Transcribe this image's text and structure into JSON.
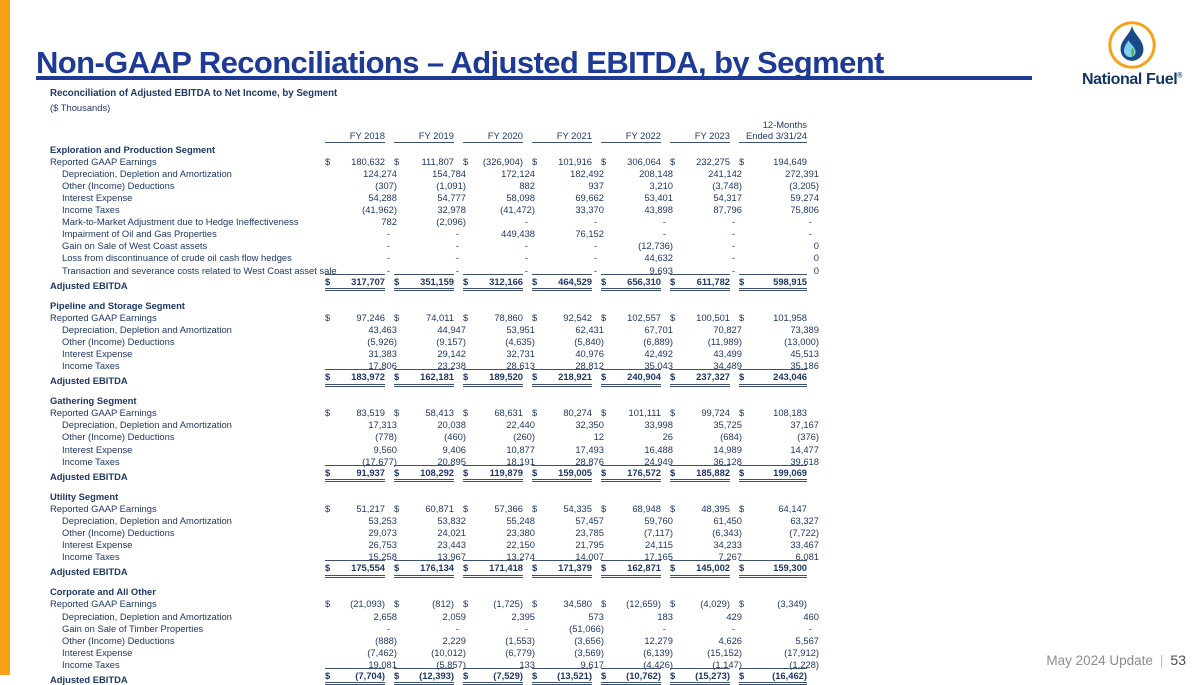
{
  "slide": {
    "title": "Non-GAAP Reconciliations – Adjusted EBITDA, by Segment",
    "logo": {
      "wordmark": "National Fuel",
      "registered_mark": "®",
      "icon": "flame-droplet-icon"
    },
    "footer": {
      "update_text": "May 2024 Update",
      "separator": "|",
      "page_number": "53"
    }
  },
  "colors": {
    "accent_orange": "#F7A11A",
    "title_blue": "#1e3a94",
    "navy_text": "#1F3864",
    "rule_navy": "#3d5070",
    "footer_gray": "#8c8c8c"
  },
  "table": {
    "title": "Reconciliation of Adjusted EBITDA to Net Income, by Segment",
    "subtitle": "($ Thousands)",
    "col_headers": [
      "FY 2018",
      "FY 2019",
      "FY 2020",
      "FY 2021",
      "FY 2022",
      "FY 2023"
    ],
    "last_col_header_line1": "12-Months",
    "last_col_header_line2": "Ended 3/31/24",
    "segments": [
      {
        "name": "Exploration and Production Segment",
        "rows": [
          {
            "label": "Reported GAAP Earnings",
            "indent": false,
            "dollar": true,
            "total": false,
            "values": [
              "180,632",
              "111,807",
              "(326,904)",
              "101,916",
              "306,064",
              "232,275",
              "194,649"
            ]
          },
          {
            "label": "Depreciation, Depletion and Amortization",
            "indent": true,
            "dollar": false,
            "total": false,
            "values": [
              "124,274",
              "154,784",
              "172,124",
              "182,492",
              "208,148",
              "241,142",
              "272,391"
            ]
          },
          {
            "label": "Other (Income) Deductions",
            "indent": true,
            "dollar": false,
            "total": false,
            "values": [
              "(307)",
              "(1,091)",
              "882",
              "937",
              "3,210",
              "(3,748)",
              "(3,205)"
            ]
          },
          {
            "label": "Interest Expense",
            "indent": true,
            "dollar": false,
            "total": false,
            "values": [
              "54,288",
              "54,777",
              "58,098",
              "69,662",
              "53,401",
              "54,317",
              "59,274"
            ]
          },
          {
            "label": "Income Taxes",
            "indent": true,
            "dollar": false,
            "total": false,
            "values": [
              "(41,962)",
              "32,978",
              "(41,472)",
              "33,370",
              "43,898",
              "87,796",
              "75,806"
            ]
          },
          {
            "label": "Mark-to-Market Adjustment due to Hedge Ineffectiveness",
            "indent": true,
            "dollar": false,
            "total": false,
            "values": [
              "782",
              "(2,096)",
              "-",
              "-",
              "-",
              "-",
              "-"
            ]
          },
          {
            "label": "Impairment of Oil and Gas Properties",
            "indent": true,
            "dollar": false,
            "total": false,
            "values": [
              "-",
              "-",
              "449,438",
              "76,152",
              "-",
              "-",
              "-"
            ]
          },
          {
            "label": "Gain on Sale of West Coast assets",
            "indent": true,
            "dollar": false,
            "total": false,
            "values": [
              "-",
              "-",
              "-",
              "-",
              "(12,736)",
              "-",
              "0"
            ]
          },
          {
            "label": "Loss from discontinuance of crude oil cash flow hedges",
            "indent": true,
            "dollar": false,
            "total": false,
            "values": [
              "-",
              "-",
              "-",
              "-",
              "44,632",
              "-",
              "0"
            ]
          },
          {
            "label": "Transaction and severance costs related to West Coast asset sale",
            "indent": true,
            "dollar": false,
            "total": false,
            "values": [
              "-",
              "-",
              "-",
              "-",
              "9,693",
              "-",
              "0"
            ]
          },
          {
            "label": "Adjusted EBITDA",
            "indent": false,
            "dollar": true,
            "total": true,
            "values": [
              "317,707",
              "351,159",
              "312,166",
              "464,529",
              "656,310",
              "611,782",
              "598,915"
            ]
          }
        ]
      },
      {
        "name": "Pipeline and Storage Segment",
        "rows": [
          {
            "label": "Reported GAAP Earnings",
            "indent": false,
            "dollar": true,
            "total": false,
            "values": [
              "97,246",
              "74,011",
              "78,860",
              "92,542",
              "102,557",
              "100,501",
              "101,958"
            ]
          },
          {
            "label": "Depreciation, Depletion and Amortization",
            "indent": true,
            "dollar": false,
            "total": false,
            "values": [
              "43,463",
              "44,947",
              "53,951",
              "62,431",
              "67,701",
              "70,827",
              "73,389"
            ]
          },
          {
            "label": "Other (Income) Deductions",
            "indent": true,
            "dollar": false,
            "total": false,
            "values": [
              "(5,926)",
              "(9,157)",
              "(4,635)",
              "(5,840)",
              "(6,889)",
              "(11,989)",
              "(13,000)"
            ]
          },
          {
            "label": "Interest Expense",
            "indent": true,
            "dollar": false,
            "total": false,
            "values": [
              "31,383",
              "29,142",
              "32,731",
              "40,976",
              "42,492",
              "43,499",
              "45,513"
            ]
          },
          {
            "label": "Income Taxes",
            "indent": true,
            "dollar": false,
            "total": false,
            "values": [
              "17,806",
              "23,238",
              "28,613",
              "28,812",
              "35,043",
              "34,489",
              "35,186"
            ]
          },
          {
            "label": "Adjusted EBITDA",
            "indent": false,
            "dollar": true,
            "total": true,
            "values": [
              "183,972",
              "162,181",
              "189,520",
              "218,921",
              "240,904",
              "237,327",
              "243,046"
            ]
          }
        ]
      },
      {
        "name": "Gathering Segment",
        "rows": [
          {
            "label": "Reported GAAP Earnings",
            "indent": false,
            "dollar": true,
            "total": false,
            "values": [
              "83,519",
              "58,413",
              "68,631",
              "80,274",
              "101,111",
              "99,724",
              "108,183"
            ]
          },
          {
            "label": "Depreciation, Depletion and Amortization",
            "indent": true,
            "dollar": false,
            "total": false,
            "values": [
              "17,313",
              "20,038",
              "22,440",
              "32,350",
              "33,998",
              "35,725",
              "37,167"
            ]
          },
          {
            "label": "Other (Income) Deductions",
            "indent": true,
            "dollar": false,
            "total": false,
            "values": [
              "(778)",
              "(460)",
              "(260)",
              "12",
              "26",
              "(684)",
              "(376)"
            ]
          },
          {
            "label": "Interest Expense",
            "indent": true,
            "dollar": false,
            "total": false,
            "values": [
              "9,560",
              "9,406",
              "10,877",
              "17,493",
              "16,488",
              "14,989",
              "14,477"
            ]
          },
          {
            "label": "Income Taxes",
            "indent": true,
            "dollar": false,
            "total": false,
            "values": [
              "(17,677)",
              "20,895",
              "18,191",
              "28,876",
              "24,949",
              "36,128",
              "39,618"
            ]
          },
          {
            "label": "Adjusted EBITDA",
            "indent": false,
            "dollar": true,
            "total": true,
            "values": [
              "91,937",
              "108,292",
              "119,879",
              "159,005",
              "176,572",
              "185,882",
              "199,069"
            ]
          }
        ]
      },
      {
        "name": "Utility Segment",
        "rows": [
          {
            "label": "Reported GAAP Earnings",
            "indent": false,
            "dollar": true,
            "total": false,
            "values": [
              "51,217",
              "60,871",
              "57,366",
              "54,335",
              "68,948",
              "48,395",
              "64,147"
            ]
          },
          {
            "label": "Depreciation, Depletion and Amortization",
            "indent": true,
            "dollar": false,
            "total": false,
            "values": [
              "53,253",
              "53,832",
              "55,248",
              "57,457",
              "59,760",
              "61,450",
              "63,327"
            ]
          },
          {
            "label": "Other (Income) Deductions",
            "indent": true,
            "dollar": false,
            "total": false,
            "values": [
              "29,073",
              "24,021",
              "23,380",
              "23,785",
              "(7,117)",
              "(6,343)",
              "(7,722)"
            ]
          },
          {
            "label": "Interest Expense",
            "indent": true,
            "dollar": false,
            "total": false,
            "values": [
              "26,753",
              "23,443",
              "22,150",
              "21,795",
              "24,115",
              "34,233",
              "33,467"
            ]
          },
          {
            "label": "Income Taxes",
            "indent": true,
            "dollar": false,
            "total": false,
            "values": [
              "15,258",
              "13,967",
              "13,274",
              "14,007",
              "17,165",
              "7,267",
              "6,081"
            ]
          },
          {
            "label": "Adjusted EBITDA",
            "indent": false,
            "dollar": true,
            "total": true,
            "values": [
              "175,554",
              "176,134",
              "171,418",
              "171,379",
              "162,871",
              "145,002",
              "159,300"
            ]
          }
        ]
      },
      {
        "name": "Corporate and All Other",
        "rows": [
          {
            "label": "Reported GAAP Earnings",
            "indent": false,
            "dollar": true,
            "total": false,
            "values": [
              "(21,093)",
              "(812)",
              "(1,725)",
              "34,580",
              "(12,659)",
              "(4,029)",
              "(3,349)"
            ]
          },
          {
            "label": "Depreciation, Depletion and Amortization",
            "indent": true,
            "dollar": false,
            "total": false,
            "values": [
              "2,658",
              "2,059",
              "2,395",
              "573",
              "183",
              "429",
              "460"
            ]
          },
          {
            "label": "Gain on Sale of Timber Properties",
            "indent": true,
            "dollar": false,
            "total": false,
            "values": [
              "-",
              "-",
              "-",
              "(51,066)",
              "-",
              "-",
              "-"
            ]
          },
          {
            "label": "Other (Income) Deductions",
            "indent": true,
            "dollar": false,
            "total": false,
            "values": [
              "(888)",
              "2,229",
              "(1,553)",
              "(3,656)",
              "12,279",
              "4,626",
              "5,567"
            ]
          },
          {
            "label": "Interest Expense",
            "indent": true,
            "dollar": false,
            "total": false,
            "values": [
              "(7,462)",
              "(10,012)",
              "(6,779)",
              "(3,569)",
              "(6,139)",
              "(15,152)",
              "(17,912)"
            ]
          },
          {
            "label": "Income Taxes",
            "indent": true,
            "dollar": false,
            "total": false,
            "values": [
              "19,081",
              "(5,857)",
              "133",
              "9,617",
              "(4,426)",
              "(1,147)",
              "(1,228)"
            ]
          },
          {
            "label": "Adjusted EBITDA",
            "indent": false,
            "dollar": true,
            "total": true,
            "values": [
              "(7,704)",
              "(12,393)",
              "(7,529)",
              "(13,521)",
              "(10,762)",
              "(15,273)",
              "(16,462)"
            ]
          }
        ]
      }
    ]
  }
}
